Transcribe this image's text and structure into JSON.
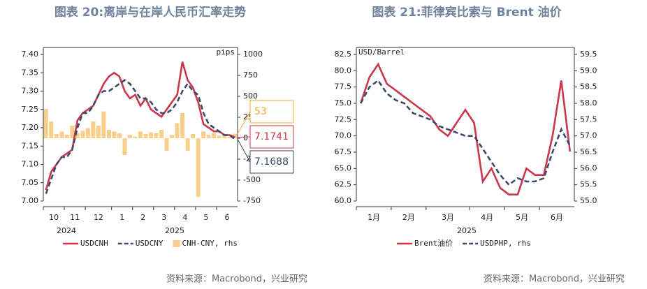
{
  "chart_data": [
    {
      "type": "line",
      "title": "图表 20:离岸与在岸人民币汇率走势",
      "source": "资料来源：Macrobond，兴业研究",
      "y2_label": "pips",
      "categories": [
        "10",
        null,
        null,
        null,
        "11",
        null,
        null,
        null,
        "12",
        null,
        null,
        null,
        null,
        "1",
        null,
        null,
        null,
        "2",
        null,
        null,
        null,
        "3",
        null,
        null,
        null,
        "4",
        null,
        null,
        null,
        "5",
        null,
        null,
        null,
        "6",
        null,
        null,
        null
      ],
      "x_group_labels": [
        "2024",
        "2025"
      ],
      "series": [
        {
          "name": "USDCNH",
          "color": "#c8374a",
          "style": "solid",
          "values": [
            7.03,
            7.08,
            7.1,
            7.12,
            7.13,
            7.14,
            7.22,
            7.24,
            7.25,
            7.26,
            7.29,
            7.32,
            7.34,
            7.35,
            7.34,
            7.3,
            7.28,
            7.29,
            7.26,
            7.28,
            7.25,
            7.24,
            7.23,
            7.25,
            7.27,
            7.29,
            7.38,
            7.33,
            7.31,
            7.27,
            7.21,
            7.2,
            7.19,
            7.19,
            7.18,
            7.18,
            7.1741
          ]
        },
        {
          "name": "USDCNY",
          "color": "#3b4a6b",
          "style": "dashed",
          "values": [
            7.02,
            7.06,
            7.1,
            7.12,
            7.12,
            7.14,
            7.2,
            7.24,
            7.24,
            7.26,
            7.29,
            7.3,
            7.3,
            7.31,
            7.32,
            7.33,
            7.32,
            7.3,
            7.28,
            7.28,
            7.27,
            7.25,
            7.24,
            7.24,
            7.25,
            7.27,
            7.3,
            7.32,
            7.3,
            7.29,
            7.24,
            7.21,
            7.2,
            7.19,
            7.18,
            7.18,
            7.1688
          ]
        },
        {
          "name": "CNH-CNY, rhs",
          "color": "#f7cf8a",
          "type": "bar",
          "axis": "y2",
          "values": [
            350,
            200,
            50,
            80,
            40,
            150,
            60,
            90,
            120,
            200,
            150,
            320,
            100,
            80,
            60,
            -200,
            40,
            20,
            80,
            50,
            70,
            60,
            100,
            -150,
            40,
            180,
            300,
            -150,
            50,
            -700,
            80,
            40,
            60,
            30,
            40,
            20,
            53
          ]
        }
      ],
      "last_value_boxes": true,
      "ylim": [
        7.0,
        7.4
      ],
      "yticks": [
        {
          "value": 7.4,
          "label": "7.40"
        },
        7.35,
        {
          "value": 7.3,
          "label": "7.30"
        },
        7.25,
        {
          "value": 7.2,
          "label": "7.20"
        },
        7.15,
        {
          "value": 7.1,
          "label": "7.10"
        },
        7.05,
        {
          "value": 7.0,
          "label": "7.00"
        }
      ],
      "y2lim": [
        -750,
        1000
      ],
      "y2ticks": [
        1000,
        750,
        500,
        250,
        0,
        -250,
        -500,
        -750
      ]
    },
    {
      "type": "line",
      "title": "图表 21:菲律宾比索与 Brent 油价",
      "source": "资料来源：Macrobond，兴业研究",
      "y_label": "USD/Barrel",
      "categories": [
        "1月",
        null,
        null,
        null,
        "2月",
        null,
        null,
        null,
        "3月",
        null,
        null,
        null,
        null,
        "4月",
        null,
        null,
        null,
        "5月",
        null,
        null,
        null,
        "6月",
        null,
        null,
        null
      ],
      "x_group_labels": [
        "2025"
      ],
      "series": [
        {
          "name": "Brent油价",
          "color": "#c8374a",
          "style": "solid",
          "values": [
            75.0,
            79.0,
            81.0,
            78.0,
            77.0,
            76.0,
            75.0,
            74.0,
            73.0,
            71.0,
            70.0,
            72.0,
            74.0,
            72.0,
            63.0,
            65.0,
            62.0,
            61.0,
            61.0,
            65.0,
            64.0,
            64.0,
            70.0,
            78.5,
            67.6
          ]
        },
        {
          "name": "USDPHP, rhs",
          "color": "#3b4a6b",
          "style": "dashed",
          "axis": "y2",
          "values": [
            58.0,
            58.5,
            58.7,
            58.3,
            58.1,
            58.0,
            57.7,
            57.6,
            57.5,
            57.3,
            57.2,
            57.1,
            57.0,
            57.0,
            56.6,
            56.2,
            55.8,
            55.5,
            55.7,
            55.6,
            55.6,
            55.7,
            56.5,
            57.2,
            56.7
          ]
        }
      ],
      "last_value_boxes": false,
      "ylim": [
        60.0,
        82.5
      ],
      "yticks": [
        82.5,
        {
          "value": 80.0,
          "label": "80.0"
        },
        77.5,
        {
          "value": 75.0,
          "label": "75.0"
        },
        72.5,
        {
          "value": 70.0,
          "label": "70.0"
        },
        67.5,
        {
          "value": 65.0,
          "label": "65.0"
        },
        62.5,
        {
          "value": 60.0,
          "label": "60.0"
        }
      ],
      "y2lim": [
        55.0,
        59.5
      ],
      "y2ticks": [
        59.5,
        {
          "value": 59.0,
          "label": "59.0"
        },
        58.5,
        {
          "value": 58.0,
          "label": "58.0"
        },
        57.5,
        {
          "value": 57.0,
          "label": "57.0"
        },
        56.5,
        {
          "value": 56.0,
          "label": "56.0"
        },
        55.5,
        {
          "value": 55.0,
          "label": "55.0"
        }
      ]
    }
  ]
}
